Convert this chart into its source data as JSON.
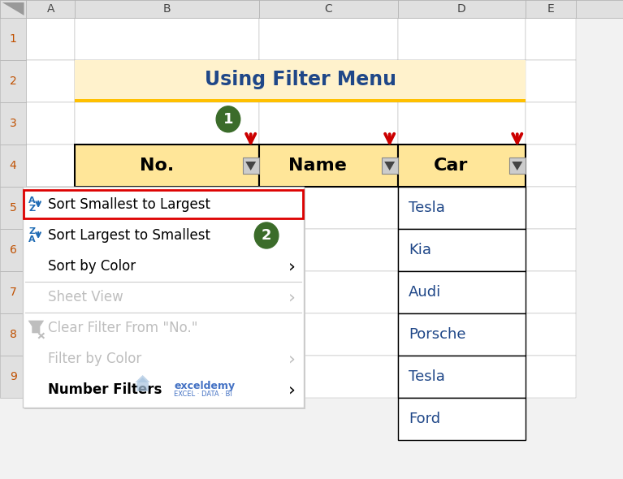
{
  "title": "Using Filter Menu",
  "title_color": "#1F4788",
  "title_bg": "#FFF2CC",
  "title_underline": "#FFC000",
  "col_headers": [
    "No.",
    "Name",
    "Car"
  ],
  "col_header_bg": "#FFE699",
  "car_data": [
    "Tesla",
    "Kia",
    "Audi",
    "Porsche",
    "Tesla",
    "Ford"
  ],
  "menu_items": [
    {
      "text": "Sort Smallest to Largest",
      "icon": "AZ",
      "highlighted": true,
      "enabled": true,
      "arrow": false,
      "separator_after": false
    },
    {
      "text": "Sort Largest to Smallest",
      "icon": "ZA",
      "highlighted": false,
      "enabled": true,
      "arrow": false,
      "separator_after": false
    },
    {
      "text": "Sort by Color",
      "icon": "",
      "highlighted": false,
      "enabled": true,
      "arrow": true,
      "separator_after": true
    },
    {
      "text": "Sheet View",
      "icon": "",
      "highlighted": false,
      "enabled": false,
      "arrow": true,
      "separator_after": true
    },
    {
      "text": "Clear Filter From \"No.\"",
      "icon": "filter",
      "highlighted": false,
      "enabled": false,
      "arrow": false,
      "separator_after": false
    },
    {
      "text": "Filter by Color",
      "icon": "",
      "highlighted": false,
      "enabled": false,
      "arrow": true,
      "separator_after": false
    },
    {
      "text": "Number Filters",
      "icon": "",
      "highlighted": false,
      "enabled": true,
      "bold": true,
      "arrow": true,
      "separator_after": false
    }
  ],
  "bg_color": "#F2F2F2",
  "col_header_bg_excel": "#E0E0E0",
  "col_header_border": "#AAAAAA",
  "white": "#FFFFFF",
  "border_color": "#000000",
  "red_arrow": "#CC0000",
  "highlight_border": "#DD0000",
  "disabled_color": "#BEBEBE",
  "menu_text_color": "#000000",
  "green_circle": "#3B6C2A",
  "exceldemy_color": "#4472C4",
  "az_color": "#1F6BB4",
  "row_num_color": "#C05000",
  "col_lbl_color": "#444444",
  "car_text_color": "#1F4788"
}
